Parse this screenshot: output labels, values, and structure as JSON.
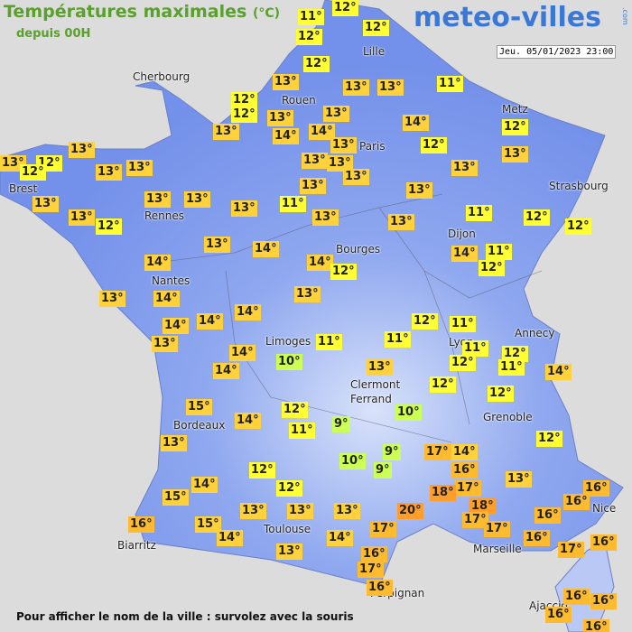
{
  "header": {
    "title": "Températures maximales",
    "unit": "(°C)",
    "subtitle": "depuis 00H",
    "logo": "meteo-villes",
    "logo_suffix": ".com",
    "timestamp": "Jeu. 05/01/2023 23:00"
  },
  "cities": [
    "Cherbourg",
    "Lille",
    "Rouen",
    "Metz",
    "Paris",
    "Brest",
    "Strasbourg",
    "Rennes",
    "Dijon",
    "Bourges",
    "Nantes",
    "Annecy",
    "Limoges",
    "Lyon",
    "Clermont",
    "Ferrand",
    "Grenoble",
    "Bordeaux",
    "Toulouse",
    "Nice",
    "Biarritz",
    "Marseille",
    "Perpignan",
    "Ajaccio"
  ],
  "temperatures": [
    "11°",
    "12°",
    "12°",
    "12°",
    "12°",
    "11°",
    "13°",
    "13°",
    "13°",
    "12°",
    "12°",
    "13°",
    "13°",
    "14°",
    "14°",
    "12°",
    "13°",
    "13°",
    "12°",
    "13°",
    "13°",
    "12°",
    "13°",
    "13°",
    "13°",
    "13°",
    "13°",
    "13°",
    "14°",
    "12°",
    "13°",
    "13°",
    "13°",
    "13°",
    "13°",
    "13°",
    "13°",
    "11°",
    "13°",
    "12°",
    "13°",
    "13°",
    "11°",
    "12°",
    "12°",
    "13°",
    "14°",
    "14°",
    "11°",
    "12°",
    "14°",
    "14°",
    "12°",
    "13°",
    "14°",
    "13°",
    "14°",
    "14°",
    "14°",
    "12°",
    "11°",
    "13°",
    "11°",
    "11°",
    "11°",
    "12°",
    "14°",
    "10°",
    "11°",
    "12°",
    "14°",
    "13°",
    "14°",
    "12°",
    "12°",
    "15°",
    "12°",
    "10°",
    "14°",
    "9°",
    "11°",
    "13°",
    "9°",
    "17°",
    "14°",
    "12°",
    "10°",
    "9°",
    "12°",
    "16°",
    "13°",
    "14°",
    "12°",
    "17°",
    "18°",
    "16°",
    "15°",
    "16°",
    "20°",
    "13°",
    "13°",
    "13°",
    "18°",
    "17°",
    "16°",
    "16°",
    "15°",
    "17°",
    "17°",
    "14°",
    "14°",
    "16°",
    "16°",
    "17°",
    "13°",
    "16°",
    "17°",
    "16°",
    "16°",
    "16°",
    "16°",
    "16°"
  ],
  "footer": "Pour afficher le nom de la ville : survolez avec la souris"
}
